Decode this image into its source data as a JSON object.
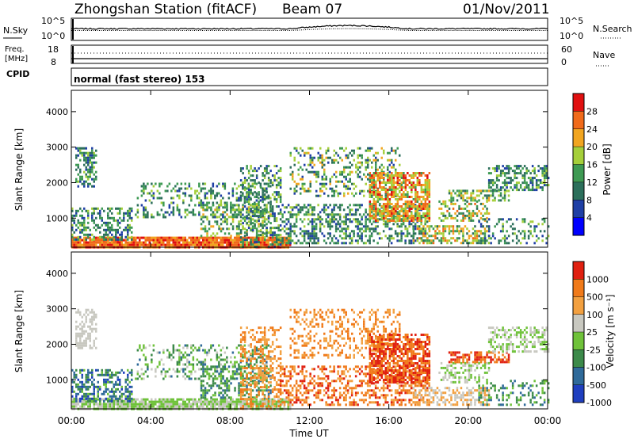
{
  "header": {
    "title": "Zhongshan Station (fitACF)",
    "beam": "Beam 07",
    "date": "01/Nov/2011"
  },
  "noise_panel": {
    "left_label": "N.Sky",
    "right_label": "N.Search",
    "left_ticks": [
      "10^5",
      "10^0"
    ],
    "right_ticks": [
      "10^5",
      "10^0"
    ]
  },
  "freq_panel": {
    "left_label_1": "Freq.",
    "left_label_2": "[MHz]",
    "left_ticks": [
      "18",
      "8"
    ],
    "right_label": "Nave",
    "right_ticks": [
      "60",
      "0"
    ],
    "cpid_label": "CPID"
  },
  "cpid_panel": {
    "text": "normal (fast stereo) 153"
  },
  "chart_data": [
    {
      "type": "heatmap",
      "name": "power",
      "ylabel": "Slant Range [km]",
      "xlabel": "Time UT",
      "ylim": [
        180,
        4600
      ],
      "xlim": [
        0,
        24
      ],
      "yticks": [
        "1000",
        "2000",
        "3000",
        "4000"
      ],
      "xticks": [
        "00:00",
        "04:00",
        "08:00",
        "12:00",
        "16:00",
        "20:00",
        "00:00"
      ],
      "colorbar": {
        "label": "Power [dB]",
        "ticks": [
          "4",
          "8",
          "12",
          "16",
          "20",
          "24",
          "28"
        ],
        "colors": [
          "#0000ff",
          "#1f3fa5",
          "#2c6f5b",
          "#3e9a53",
          "#a5cf3a",
          "#f1a520",
          "#f06a1a",
          "#e01010"
        ]
      }
    },
    {
      "type": "heatmap",
      "name": "velocity",
      "ylabel": "Slant Range [km]",
      "xlabel": "Time UT",
      "ylim": [
        180,
        4600
      ],
      "xlim": [
        0,
        24
      ],
      "yticks": [
        "1000",
        "2000",
        "3000",
        "4000"
      ],
      "xticks": [
        "00:00",
        "04:00",
        "08:00",
        "12:00",
        "16:00",
        "20:00",
        "00:00"
      ],
      "colorbar": {
        "label": "Velocity [m s⁻¹]",
        "ticks": [
          "1000",
          "500",
          "100",
          "25",
          "-25",
          "-100",
          "-500",
          "-1000"
        ],
        "colors": [
          "#1f3fbf",
          "#2f6a9a",
          "#3c8a4a",
          "#6fc23a",
          "#c8c8c0",
          "#f2a040",
          "#f07a1a",
          "#e02010"
        ]
      }
    }
  ],
  "x_axis_title": "Time UT"
}
